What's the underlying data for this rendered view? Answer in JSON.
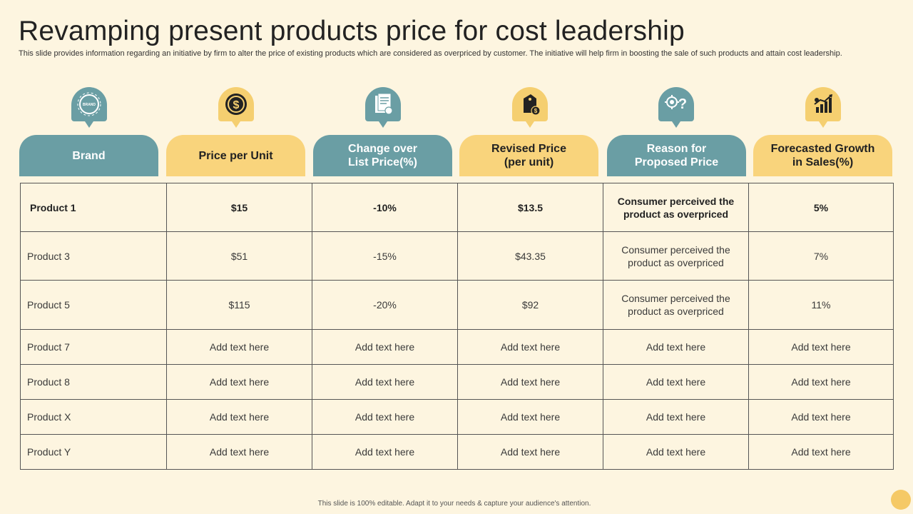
{
  "title": "Revamping present products price for cost leadership",
  "subtitle": "This slide provides information regarding an initiative by firm to alter the price of existing products which are considered as overpriced by customer. The initiative will help firm in boosting the sale of such products and attain cost leadership.",
  "icons": {
    "brand": {
      "name": "brand-badge-icon",
      "text": "BRAND"
    },
    "price": {
      "name": "dollar-coin-icon"
    },
    "change": {
      "name": "price-list-document-icon"
    },
    "revised": {
      "name": "price-tag-icon"
    },
    "reason": {
      "name": "idea-question-icon"
    },
    "growth": {
      "name": "growth-chart-icon"
    }
  },
  "colors": {
    "teal": "#6a9ea4",
    "gold": "#f9d47c",
    "background": "#fdf5e0",
    "border": "#555555"
  },
  "headers": [
    {
      "line1": "Brand",
      "line2": ""
    },
    {
      "line1": "Price per Unit",
      "line2": ""
    },
    {
      "line1": "Change over",
      "line2": "List Price(%)"
    },
    {
      "line1": "Revised Price",
      "line2": "(per unit)"
    },
    {
      "line1": "Reason for",
      "line2": "Proposed Price"
    },
    {
      "line1": "Forecasted Growth",
      "line2": "in Sales(%)"
    }
  ],
  "rows": [
    [
      "Product 1",
      "$15",
      "-10%",
      "$13.5",
      "Consumer perceived the product as overpriced",
      "5%"
    ],
    [
      "Product 3",
      "$51",
      "-15%",
      "$43.35",
      "Consumer perceived the product as overpriced",
      "7%"
    ],
    [
      "Product 5",
      "$115",
      "-20%",
      "$92",
      "Consumer perceived the product as overpriced",
      "11%"
    ],
    [
      "Product 7",
      "Add text here",
      "Add text here",
      "Add text here",
      "Add text here",
      "Add text here"
    ],
    [
      "Product 8",
      "Add text here",
      "Add text here",
      "Add text here",
      "Add text here",
      "Add text here"
    ],
    [
      "Product X",
      "Add text here",
      "Add text here",
      "Add text here",
      "Add text here",
      "Add text here"
    ],
    [
      "Product Y",
      "Add text here",
      "Add text here",
      "Add text here",
      "Add text here",
      "Add text here"
    ]
  ],
  "footer": "This slide is 100% editable. Adapt it to your needs & capture your audience's attention."
}
